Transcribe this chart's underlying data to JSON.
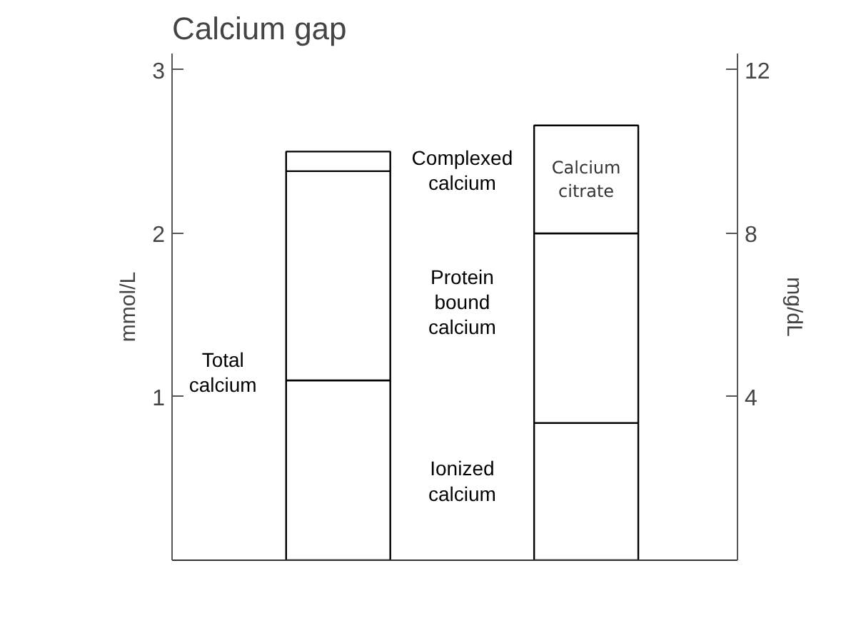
{
  "chart_data": {
    "type": "bar",
    "title": "Calcium gap",
    "ylabel": "mmol/L",
    "y2label": "mg/dL",
    "categories": [
      null,
      null
    ],
    "stacked": true,
    "series": [
      {
        "name": "Ionized calcium",
        "color": "#ffffff",
        "values": [
          1.1,
          0.84
        ]
      },
      {
        "name": "Protein bound calcium",
        "color": "#ffffff",
        "values": [
          1.28,
          1.16
        ]
      },
      {
        "name": "Complexed calcium",
        "color": "#ffffff",
        "values": [
          0.12,
          0.66
        ],
        "value_labels": [
          null,
          "Calcium citrate"
        ]
      }
    ],
    "ylim": [
      0,
      3.1
    ],
    "yticks": [
      1,
      2,
      3
    ],
    "y2lim": [
      0,
      12.4
    ],
    "y2ticks": [
      4,
      8,
      12
    ],
    "annotations": [
      "Total calcium"
    ],
    "grid": false
  }
}
